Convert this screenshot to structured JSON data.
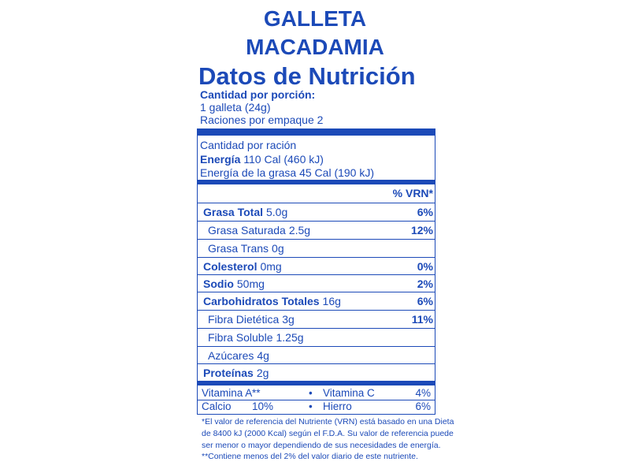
{
  "title": [
    "GALLETA",
    "MACADAMIA"
  ],
  "heading": "Datos de Nutrición",
  "serving": {
    "label": "Cantidad por porción:",
    "size": "1 galleta (24g)",
    "servings": "Raciones por empaque 2"
  },
  "amount_per": "Cantidad por ración",
  "energy": {
    "label": "Energía",
    "value": "110 Cal (460 kJ)"
  },
  "fat_energy": "Energía de la grasa 45 Cal (190 kJ)",
  "dv_header": "% VRN*",
  "nutrients": [
    {
      "name": "Grasa Total",
      "amount": "5.0g",
      "dv": "6%"
    },
    {
      "name": "Grasa Saturada",
      "amount": "2.5g",
      "dv": "12%"
    },
    {
      "name": "Grasa Trans",
      "amount": "0g"
    },
    {
      "name": "Colesterol",
      "amount": "0mg",
      "dv": "0%"
    },
    {
      "name": "Sodio",
      "amount": "50mg",
      "dv": "2%"
    },
    {
      "name": "Carbohidratos Totales",
      "amount": "16g",
      "dv": "6%"
    },
    {
      "name": "Fibra Dietética",
      "amount": "3g",
      "dv": "11%"
    },
    {
      "name": "Fibra Soluble",
      "amount": "1.25g"
    },
    {
      "name": "Azúcares",
      "amount": "4g"
    },
    {
      "name": "Proteínas",
      "amount": "2g"
    }
  ],
  "vitamins": [
    [
      "Vitamina A",
      "**",
      "Vitamina C",
      "4%"
    ],
    [
      "Calcio",
      "10%",
      "Hierro",
      "6%"
    ]
  ],
  "footnotes": [
    "*El valor de referencia del Nutriente (VRN) está basado en una Dieta",
    "de 8400 kJ (2000 Kcal) según el F.D.A. Su valor de referencia puede",
    "ser menor o mayor dependiendo de sus necesidades de energía.",
    "**Contiene menos del 2% del valor diario de este nutriente."
  ]
}
